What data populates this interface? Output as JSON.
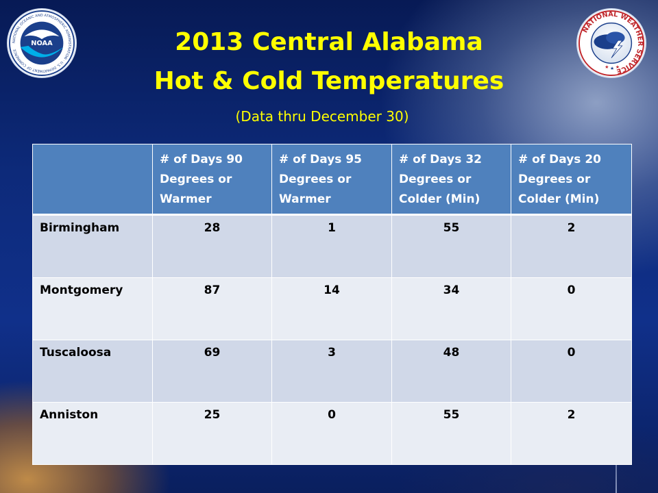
{
  "title": {
    "line1": "2013 Central Alabama",
    "line2": "Hot & Cold Temperatures",
    "subtitle": "(Data thru December 30)"
  },
  "logos": {
    "left": {
      "icon": "noaa-logo",
      "text": "NOAA",
      "ring_text": "NATIONAL OCEANIC AND ATMOSPHERIC ADMINISTRATION · U.S. DEPARTMENT OF COMMERCE"
    },
    "right": {
      "icon": "national-weather-service-logo",
      "ring_text": "NATIONAL WEATHER SERVICE"
    }
  },
  "table": {
    "headers": [
      "",
      "# of Days 90 Degrees or Warmer",
      "# of Days 95 Degrees or Warmer",
      "# of Days 32 Degrees or Colder (Min)",
      "# of Days 20 Degrees or Colder (Min)"
    ],
    "rows": [
      [
        "Birmingham",
        "28",
        "1",
        "55",
        "2"
      ],
      [
        "Montgomery",
        "87",
        "14",
        "34",
        "0"
      ],
      [
        "Tuscaloosa",
        "69",
        "3",
        "48",
        "0"
      ],
      [
        "Anniston",
        "25",
        "0",
        "55",
        "2"
      ]
    ]
  },
  "colors": {
    "title": "#ffff00",
    "header_bg": "#4f81bd",
    "row_odd": "#d0d8e8",
    "row_even": "#e9edf4",
    "background": "#0d2a7a"
  }
}
